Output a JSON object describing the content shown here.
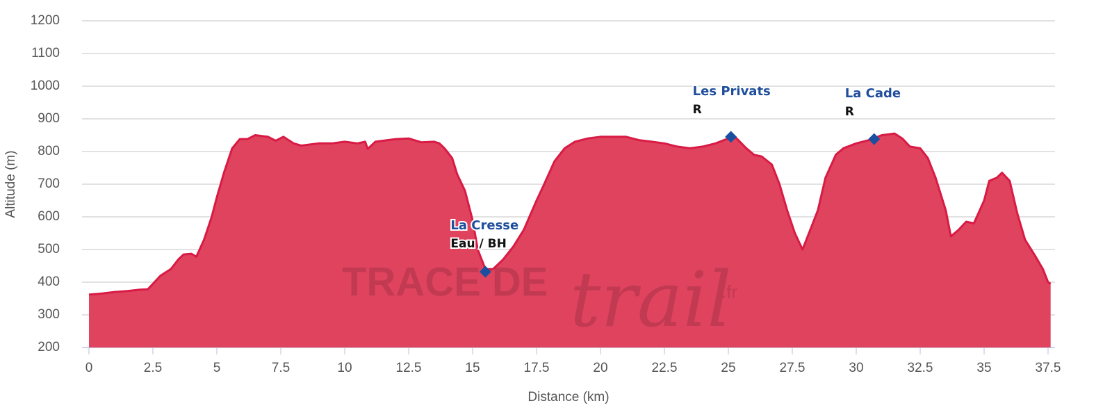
{
  "chart_data": {
    "type": "area",
    "xlabel": "Distance (km)",
    "ylabel": "Altitude (m)",
    "watermark": [
      "TRACE DE",
      "trail",
      ".fr"
    ],
    "x": [
      0,
      0.5,
      1,
      1.5,
      2,
      2.3,
      2.5,
      2.8,
      3.2,
      3.5,
      3.7,
      4,
      4.2,
      4.5,
      4.8,
      5,
      5.3,
      5.6,
      5.9,
      6.2,
      6.5,
      7,
      7.3,
      7.6,
      8,
      8.3,
      9,
      9.5,
      10,
      10.5,
      10.8,
      10.9,
      11.2,
      12,
      12.5,
      13,
      13.5,
      13.7,
      13.9,
      14.2,
      14.4,
      14.7,
      15,
      15.2,
      15.5,
      15.8,
      16.2,
      16.6,
      17,
      17.5,
      17.8,
      18.2,
      18.6,
      19,
      19.5,
      20,
      21,
      21.5,
      22,
      22.5,
      23,
      23.5,
      24,
      24.5,
      25,
      25.3,
      25.7,
      26,
      26.3,
      26.7,
      27,
      27.3,
      27.6,
      27.9,
      28.2,
      28.5,
      28.8,
      29.2,
      29.5,
      30,
      30.5,
      31,
      31.5,
      31.8,
      32.1,
      32.5,
      32.8,
      33.1,
      33.5,
      33.7,
      34,
      34.3,
      34.6,
      35,
      35.2,
      35.5,
      35.7,
      36,
      36.3,
      36.6,
      37,
      37.3,
      37.5,
      37.6
    ],
    "series": [
      {
        "name": "Altitude",
        "color": "#d81b45",
        "fill": "#e0435e",
        "values": [
          362,
          365,
          370,
          373,
          377,
          378,
          395,
          420,
          440,
          470,
          485,
          487,
          478,
          530,
          600,
          660,
          740,
          810,
          838,
          838,
          850,
          845,
          833,
          845,
          825,
          818,
          825,
          825,
          830,
          825,
          830,
          808,
          830,
          838,
          840,
          828,
          830,
          825,
          810,
          780,
          730,
          680,
          590,
          500,
          440,
          440,
          470,
          510,
          560,
          650,
          700,
          770,
          810,
          830,
          840,
          845,
          845,
          835,
          830,
          825,
          815,
          810,
          815,
          825,
          840,
          842,
          810,
          790,
          785,
          760,
          700,
          620,
          550,
          500,
          560,
          620,
          720,
          790,
          810,
          825,
          835,
          850,
          855,
          840,
          815,
          810,
          780,
          720,
          620,
          540,
          560,
          585,
          580,
          650,
          710,
          720,
          735,
          710,
          610,
          530,
          480,
          440,
          400,
          395
        ]
      }
    ],
    "points": [
      {
        "x": 15.5,
        "y": 432,
        "name": "La Cresse",
        "note": "Eau / BH"
      },
      {
        "x": 25.1,
        "y": 845,
        "name": "Les Privats",
        "note": "R"
      },
      {
        "x": 30.7,
        "y": 838,
        "name": "La Cade",
        "note": "R"
      }
    ],
    "point_color": "#1a4fa0",
    "xlim": [
      0,
      37.5
    ],
    "xticks": [
      0,
      2.5,
      5,
      7.5,
      10,
      12.5,
      15,
      17.5,
      20,
      22.5,
      25,
      27.5,
      30,
      32.5,
      35,
      37.5
    ],
    "ylim": [
      200,
      1200
    ],
    "yticks": [
      200,
      300,
      400,
      500,
      600,
      700,
      800,
      900,
      1000,
      1100,
      1200
    ],
    "grid": true
  }
}
